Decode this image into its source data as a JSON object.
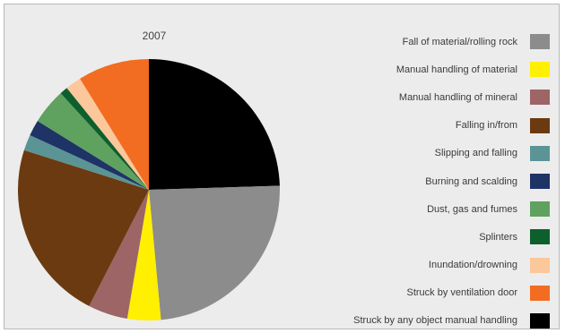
{
  "chart_data": {
    "type": "pie",
    "title": "2007",
    "start_angle_deg": -90,
    "direction": "clockwise",
    "legend_position": "right",
    "slices": [
      {
        "label": "Struck by any object manual handling",
        "value": 25.0,
        "color": "#000000"
      },
      {
        "label": "Fall of material/rolling rock",
        "value": 24.5,
        "color": "#8c8c8c"
      },
      {
        "label": "Manual handling of material",
        "value": 4.2,
        "color": "#ffef00"
      },
      {
        "label": "Manual handling of mineral",
        "value": 5.0,
        "color": "#9d6565"
      },
      {
        "label": "Falling in/from",
        "value": 22.8,
        "color": "#6b3a10"
      },
      {
        "label": "Slipping and falling",
        "value": 2.0,
        "color": "#5b9495"
      },
      {
        "label": "Burning and scalding",
        "value": 2.0,
        "color": "#1e3366"
      },
      {
        "label": "Dust, gas and fumes",
        "value": 4.5,
        "color": "#5fa15f"
      },
      {
        "label": "Splinters",
        "value": 1.0,
        "color": "#0e5f2e"
      },
      {
        "label": "Inundation/drowning",
        "value": 2.0,
        "color": "#fcc79a"
      },
      {
        "label": "Struck by ventilation door",
        "value": 9.0,
        "color": "#f26c22"
      }
    ],
    "legend": [
      {
        "label": "Fall of material/rolling rock",
        "color": "#8c8c8c"
      },
      {
        "label": "Manual handling of material",
        "color": "#ffef00"
      },
      {
        "label": "Manual handling of mineral",
        "color": "#9d6565"
      },
      {
        "label": "Falling in/from",
        "color": "#6b3a10"
      },
      {
        "label": "Slipping and falling",
        "color": "#5b9495"
      },
      {
        "label": "Burning and scalding",
        "color": "#1e3366"
      },
      {
        "label": "Dust, gas and fumes",
        "color": "#5fa15f"
      },
      {
        "label": "Splinters",
        "color": "#0e5f2e"
      },
      {
        "label": "Inundation/drowning",
        "color": "#fcc79a"
      },
      {
        "label": "Struck by ventilation door",
        "color": "#f26c22"
      },
      {
        "label": "Struck by any object manual handling",
        "color": "#000000"
      }
    ]
  }
}
